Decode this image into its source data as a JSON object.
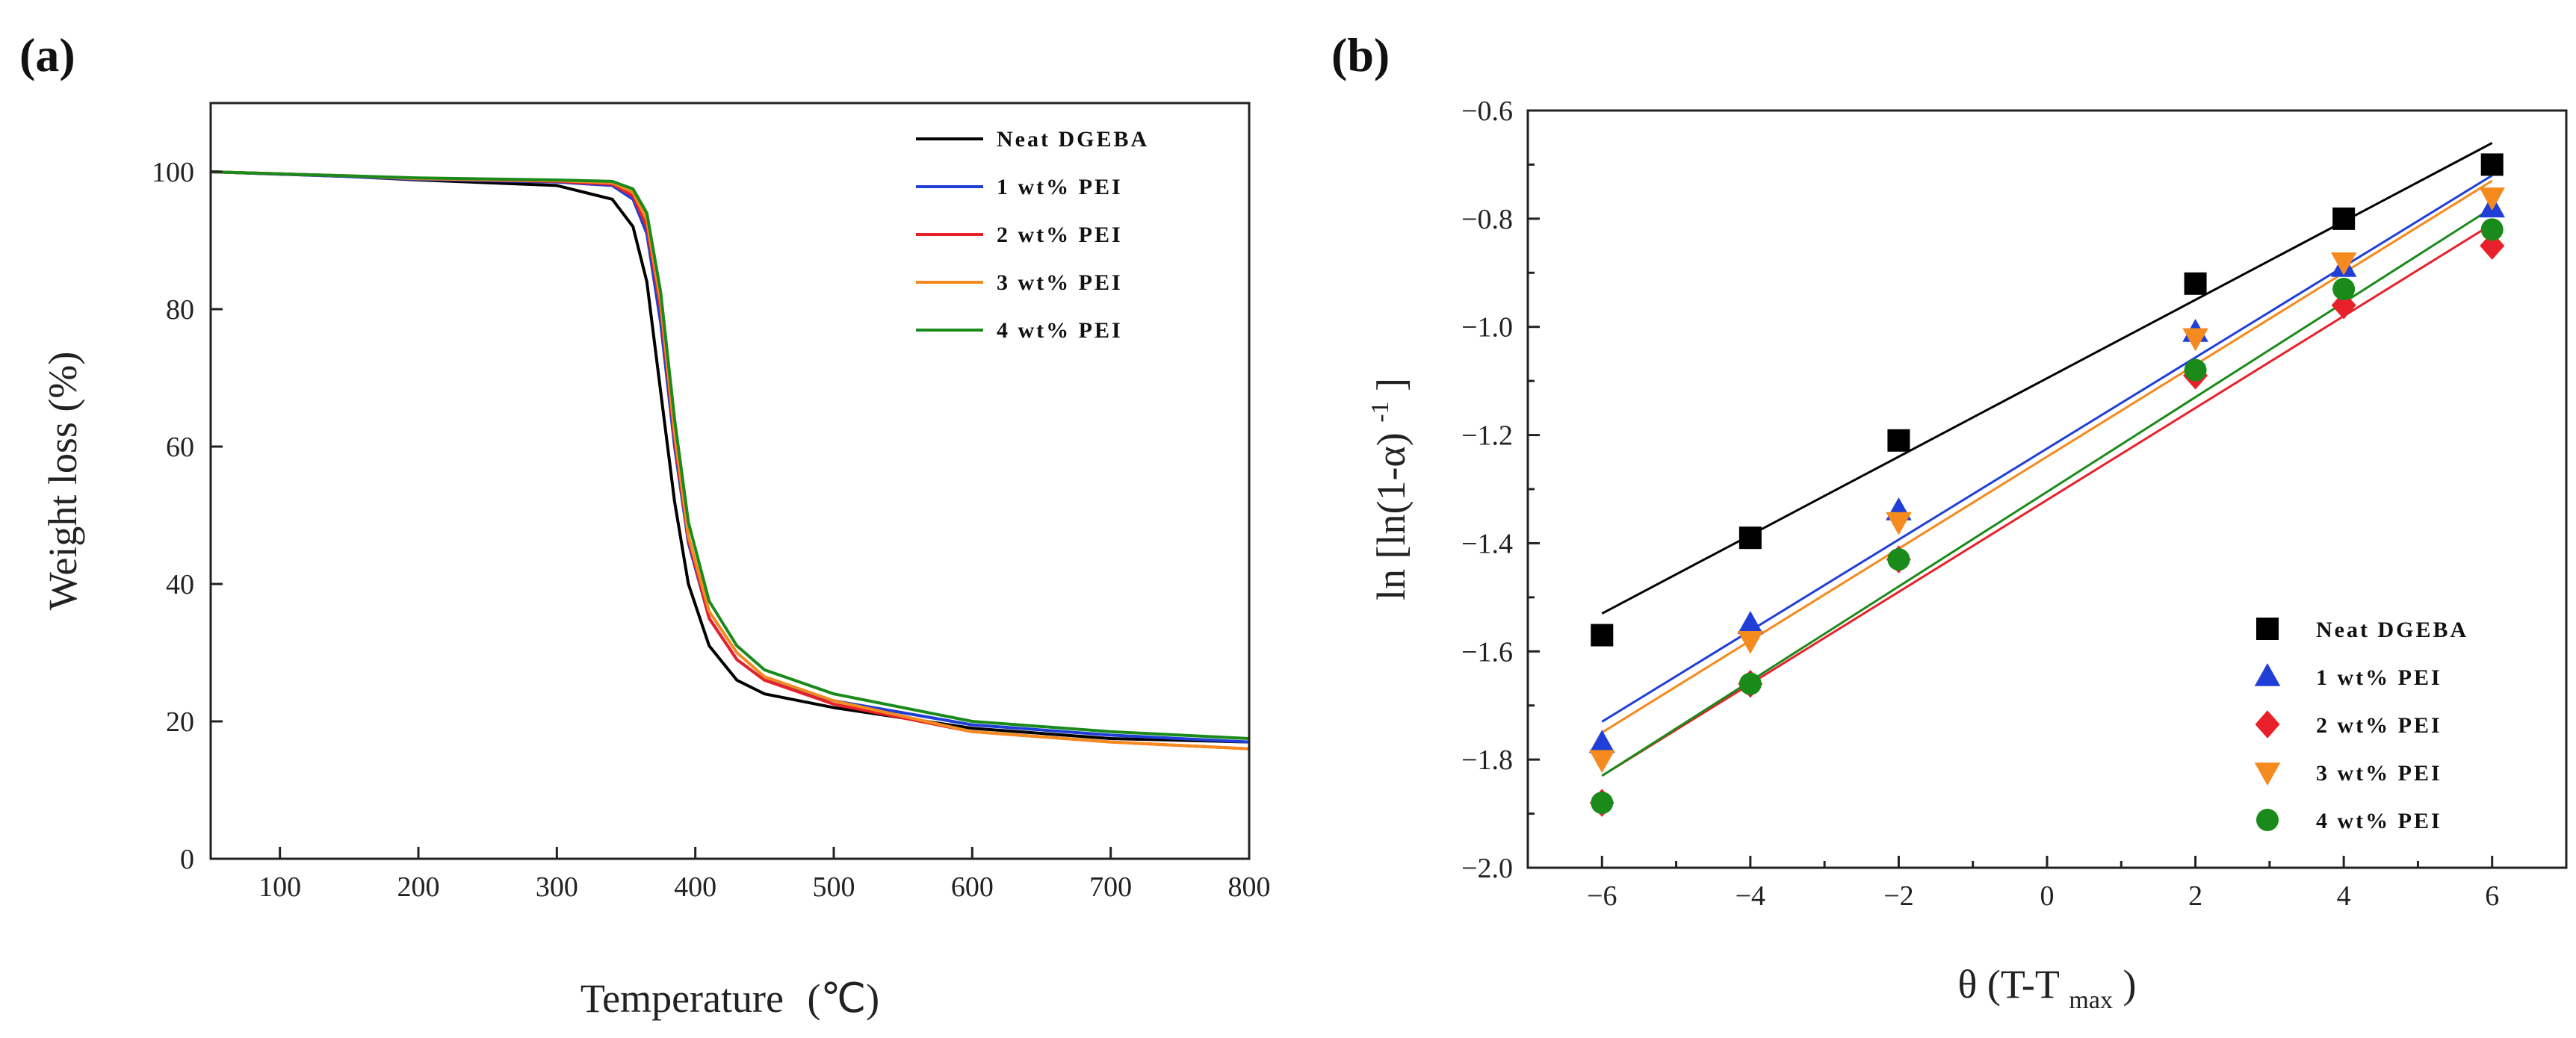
{
  "chart_data": [
    {
      "type": "line",
      "panel_label": "(a)",
      "title": "",
      "xlabel": "Temperature",
      "xlabel_unit": "(℃)",
      "ylabel": "Weight  loss  (%)",
      "xlim": [
        50,
        800
      ],
      "ylim": [
        0,
        110
      ],
      "xticks": [
        100,
        200,
        300,
        400,
        500,
        600,
        700,
        800
      ],
      "yticks": [
        0,
        20,
        40,
        60,
        80,
        100
      ],
      "grid": false,
      "legend_position": "top-right",
      "x": [
        50,
        150,
        200,
        300,
        340,
        355,
        365,
        375,
        385,
        395,
        410,
        430,
        450,
        500,
        600,
        700,
        800
      ],
      "series": [
        {
          "name": "Neat DGEBA",
          "color": "#000000",
          "values": [
            100,
            99.3,
            98.8,
            98,
            96,
            92,
            84,
            68,
            52,
            40,
            31,
            26,
            24,
            22,
            19,
            17.5,
            17
          ]
        },
        {
          "name": "1 wt% PEI",
          "color": "#1f3fd6",
          "values": [
            100,
            99.3,
            98.9,
            98.5,
            98,
            96,
            91,
            78,
            60,
            46,
            35,
            29,
            26,
            23,
            19.5,
            18,
            17
          ]
        },
        {
          "name": "2 wt% PEI",
          "color": "#e8202a",
          "values": [
            100,
            99.4,
            99,
            98.6,
            98.2,
            96.5,
            92,
            80,
            61,
            46.5,
            35,
            29,
            26,
            22.5,
            18.5,
            17,
            16
          ]
        },
        {
          "name": "3 wt% PEI",
          "color": "#f58a1f",
          "values": [
            100,
            99.4,
            99,
            98.7,
            98.4,
            97,
            93,
            81,
            62,
            47,
            36,
            30,
            26.5,
            23,
            18.5,
            17,
            16
          ]
        },
        {
          "name": "4 wt% PEI",
          "color": "#1a8a1a",
          "values": [
            100,
            99.4,
            99.1,
            98.8,
            98.6,
            97.5,
            94,
            82.5,
            64,
            49,
            37.5,
            31,
            27.5,
            24,
            20,
            18.5,
            17.5
          ]
        }
      ]
    },
    {
      "type": "scatter",
      "panel_label": "(b)",
      "title": "",
      "xlabel": "θ (T-T",
      "xlabel_sub": "max",
      "xlabel_end": ")",
      "ylabel": "ln  [ln(1-α)",
      "ylabel_sup": "-1",
      "ylabel_end": "]",
      "xlim": [
        -7,
        7
      ],
      "ylim": [
        -2.0,
        -0.6
      ],
      "xticks": [
        -6,
        -4,
        -2,
        0,
        2,
        4,
        6
      ],
      "yticks": [
        -2.0,
        -1.8,
        -1.6,
        -1.4,
        -1.2,
        -1.0,
        -0.8,
        -0.6
      ],
      "xtick_labels": [
        "−6",
        "−4",
        "−2",
        "0",
        "2",
        "4",
        "6"
      ],
      "ytick_labels": [
        "−2.0",
        "−1.8",
        "−1.6",
        "−1.4",
        "−1.2",
        "−1.0",
        "−0.8",
        "−0.6"
      ],
      "grid": false,
      "legend_position": "bottom-right",
      "x": [
        -6,
        -4,
        -2,
        2,
        4,
        6
      ],
      "series": [
        {
          "name": "Neat DGEBA",
          "color": "#000000",
          "marker": "square",
          "values": [
            -1.57,
            -1.39,
            -1.21,
            -0.92,
            -0.8,
            -0.7
          ],
          "fit": [
            -1.53,
            -0.66
          ]
        },
        {
          "name": "1 wt% PEI",
          "color": "#1f3fd6",
          "marker": "triangle-up",
          "values": [
            -1.77,
            -1.55,
            -1.34,
            -1.01,
            -0.89,
            -0.78
          ],
          "fit": [
            -1.73,
            -0.72
          ]
        },
        {
          "name": "2 wt% PEI",
          "color": "#e8202a",
          "marker": "diamond",
          "values": [
            -1.88,
            -1.66,
            -1.43,
            -1.09,
            -0.96,
            -0.85
          ],
          "fit": [
            -1.83,
            -0.81
          ]
        },
        {
          "name": "3 wt% PEI",
          "color": "#f58a1f",
          "marker": "triangle-down",
          "values": [
            -1.8,
            -1.58,
            -1.36,
            -1.02,
            -0.88,
            -0.76
          ],
          "fit": [
            -1.75,
            -0.73
          ]
        },
        {
          "name": "4 wt% PEI",
          "color": "#1a8a1a",
          "marker": "circle",
          "values": [
            -1.88,
            -1.66,
            -1.43,
            -1.08,
            -0.93,
            -0.82
          ],
          "fit": [
            -1.83,
            -0.78
          ]
        }
      ]
    }
  ]
}
